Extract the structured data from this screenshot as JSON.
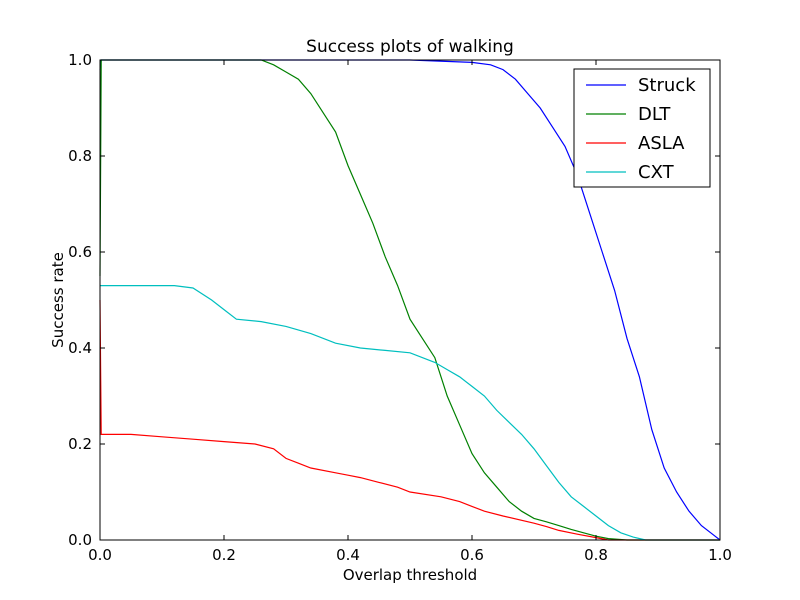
{
  "chart_data": {
    "type": "line",
    "title": "Success plots of walking",
    "xlabel": "Overlap threshold",
    "ylabel": "Success rate",
    "xlim": [
      0,
      1
    ],
    "ylim": [
      0,
      1
    ],
    "x_ticks": [
      "0.0",
      "0.2",
      "0.4",
      "0.6",
      "0.8",
      "1.0"
    ],
    "y_ticks": [
      "0.0",
      "0.2",
      "0.4",
      "0.6",
      "0.8",
      "1.0"
    ],
    "grid": false,
    "legend_position": "top-right",
    "series": [
      {
        "name": "Struck",
        "color": "#0000ff",
        "points": [
          [
            0,
            0.98
          ],
          [
            0.002,
            1
          ],
          [
            0.3,
            1
          ],
          [
            0.5,
            1
          ],
          [
            0.6,
            0.995
          ],
          [
            0.63,
            0.99
          ],
          [
            0.65,
            0.98
          ],
          [
            0.67,
            0.96
          ],
          [
            0.69,
            0.93
          ],
          [
            0.71,
            0.9
          ],
          [
            0.73,
            0.86
          ],
          [
            0.75,
            0.82
          ],
          [
            0.77,
            0.76
          ],
          [
            0.79,
            0.68
          ],
          [
            0.81,
            0.6
          ],
          [
            0.83,
            0.52
          ],
          [
            0.85,
            0.42
          ],
          [
            0.87,
            0.34
          ],
          [
            0.89,
            0.23
          ],
          [
            0.91,
            0.15
          ],
          [
            0.93,
            0.1
          ],
          [
            0.95,
            0.06
          ],
          [
            0.97,
            0.03
          ],
          [
            0.99,
            0.01
          ],
          [
            1,
            0
          ]
        ]
      },
      {
        "name": "DLT",
        "color": "#008000",
        "points": [
          [
            0,
            0.55
          ],
          [
            0.002,
            1
          ],
          [
            0.26,
            1
          ],
          [
            0.28,
            0.99
          ],
          [
            0.3,
            0.975
          ],
          [
            0.32,
            0.96
          ],
          [
            0.34,
            0.93
          ],
          [
            0.36,
            0.89
          ],
          [
            0.38,
            0.85
          ],
          [
            0.4,
            0.78
          ],
          [
            0.42,
            0.72
          ],
          [
            0.44,
            0.66
          ],
          [
            0.46,
            0.59
          ],
          [
            0.48,
            0.53
          ],
          [
            0.5,
            0.46
          ],
          [
            0.52,
            0.42
          ],
          [
            0.54,
            0.38
          ],
          [
            0.56,
            0.3
          ],
          [
            0.58,
            0.24
          ],
          [
            0.6,
            0.18
          ],
          [
            0.62,
            0.14
          ],
          [
            0.64,
            0.11
          ],
          [
            0.66,
            0.08
          ],
          [
            0.68,
            0.06
          ],
          [
            0.7,
            0.045
          ],
          [
            0.72,
            0.038
          ],
          [
            0.74,
            0.03
          ],
          [
            0.76,
            0.022
          ],
          [
            0.78,
            0.015
          ],
          [
            0.8,
            0.008
          ],
          [
            0.82,
            0.003
          ],
          [
            0.85,
            0
          ],
          [
            1,
            0
          ]
        ]
      },
      {
        "name": "ASLA",
        "color": "#ff0000",
        "points": [
          [
            0,
            0.5
          ],
          [
            0.002,
            0.22
          ],
          [
            0.05,
            0.22
          ],
          [
            0.1,
            0.215
          ],
          [
            0.15,
            0.21
          ],
          [
            0.2,
            0.205
          ],
          [
            0.25,
            0.2
          ],
          [
            0.28,
            0.19
          ],
          [
            0.3,
            0.17
          ],
          [
            0.32,
            0.16
          ],
          [
            0.34,
            0.15
          ],
          [
            0.38,
            0.14
          ],
          [
            0.4,
            0.135
          ],
          [
            0.42,
            0.13
          ],
          [
            0.45,
            0.12
          ],
          [
            0.48,
            0.11
          ],
          [
            0.5,
            0.1
          ],
          [
            0.55,
            0.09
          ],
          [
            0.58,
            0.08
          ],
          [
            0.6,
            0.07
          ],
          [
            0.62,
            0.06
          ],
          [
            0.65,
            0.05
          ],
          [
            0.7,
            0.035
          ],
          [
            0.72,
            0.028
          ],
          [
            0.74,
            0.02
          ],
          [
            0.77,
            0.012
          ],
          [
            0.8,
            0.005
          ],
          [
            0.82,
            0
          ],
          [
            1,
            0
          ]
        ]
      },
      {
        "name": "CXT",
        "color": "#00bfbf",
        "points": [
          [
            0,
            0.53
          ],
          [
            0.05,
            0.53
          ],
          [
            0.12,
            0.53
          ],
          [
            0.15,
            0.525
          ],
          [
            0.18,
            0.5
          ],
          [
            0.2,
            0.48
          ],
          [
            0.22,
            0.46
          ],
          [
            0.26,
            0.455
          ],
          [
            0.3,
            0.445
          ],
          [
            0.34,
            0.43
          ],
          [
            0.38,
            0.41
          ],
          [
            0.42,
            0.4
          ],
          [
            0.46,
            0.395
          ],
          [
            0.5,
            0.39
          ],
          [
            0.54,
            0.37
          ],
          [
            0.56,
            0.355
          ],
          [
            0.58,
            0.34
          ],
          [
            0.6,
            0.32
          ],
          [
            0.62,
            0.3
          ],
          [
            0.64,
            0.27
          ],
          [
            0.66,
            0.245
          ],
          [
            0.68,
            0.22
          ],
          [
            0.7,
            0.19
          ],
          [
            0.72,
            0.155
          ],
          [
            0.74,
            0.12
          ],
          [
            0.76,
            0.09
          ],
          [
            0.78,
            0.07
          ],
          [
            0.8,
            0.05
          ],
          [
            0.82,
            0.03
          ],
          [
            0.84,
            0.015
          ],
          [
            0.86,
            0.006
          ],
          [
            0.88,
            0
          ],
          [
            1,
            0
          ]
        ]
      }
    ]
  }
}
